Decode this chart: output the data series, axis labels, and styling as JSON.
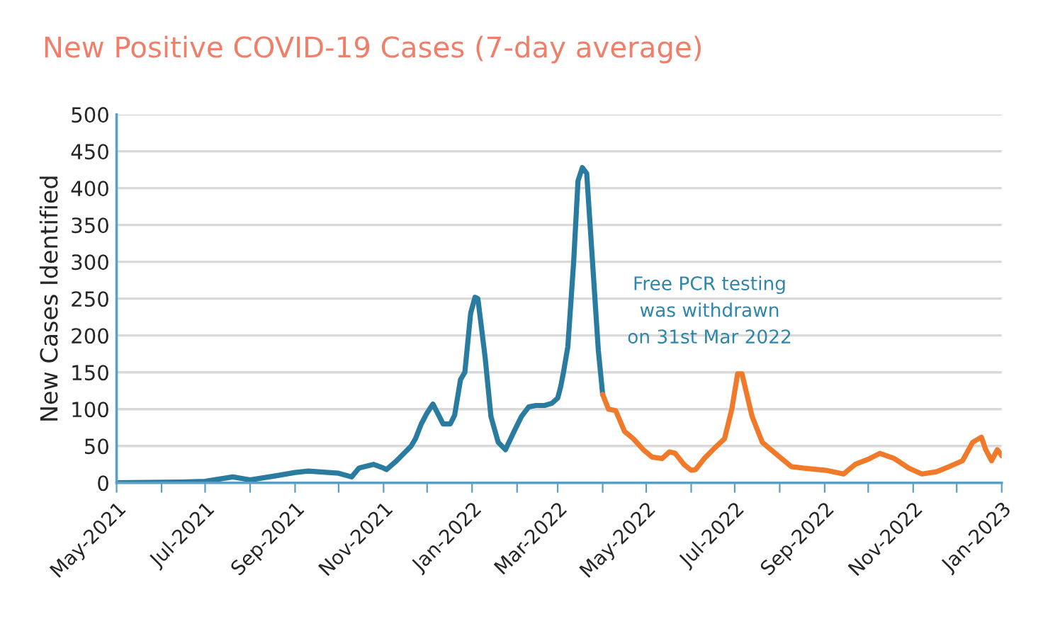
{
  "chart_data": {
    "type": "line",
    "title": "New Positive COVID-19 Cases (7-day average)",
    "ylabel": "New Cases Identified",
    "series": [
      {
        "color": "#2a7ba0",
        "x": [
          "2021-05-01",
          "2021-06-15",
          "2021-07-01",
          "2021-07-20",
          "2021-08-01",
          "2021-08-20",
          "2021-09-01",
          "2021-09-10",
          "2021-10-01",
          "2021-10-10",
          "2021-10-15",
          "2021-10-25",
          "2021-11-01",
          "2021-11-03",
          "2021-11-10",
          "2021-11-20",
          "2021-11-23",
          "2021-11-27",
          "2021-12-01",
          "2021-12-05",
          "2021-12-12",
          "2021-12-17",
          "2021-12-20",
          "2021-12-24",
          "2021-12-27",
          "2021-12-31",
          "2022-01-03",
          "2022-01-05",
          "2022-01-10",
          "2022-01-14",
          "2022-01-19",
          "2022-01-24",
          "2022-01-30",
          "2022-02-04",
          "2022-02-09",
          "2022-02-14",
          "2022-02-20",
          "2022-02-25",
          "2022-03-01",
          "2022-03-03",
          "2022-03-05",
          "2022-03-08",
          "2022-03-12",
          "2022-03-15",
          "2022-03-18",
          "2022-03-21",
          "2022-03-25",
          "2022-03-29",
          "2022-04-01"
        ],
        "values": [
          0,
          1,
          2,
          8,
          4,
          10,
          14,
          16,
          13,
          8,
          20,
          25,
          20,
          18,
          30,
          50,
          60,
          80,
          95,
          107,
          80,
          80,
          92,
          140,
          150,
          230,
          252,
          250,
          170,
          90,
          55,
          45,
          70,
          90,
          103,
          105,
          105,
          108,
          115,
          130,
          150,
          185,
          300,
          410,
          428,
          420,
          300,
          180,
          120
        ]
      },
      {
        "color": "#f07a2a",
        "x": [
          "2022-04-01",
          "2022-04-05",
          "2022-04-10",
          "2022-04-16",
          "2022-04-22",
          "2022-04-29",
          "2022-05-05",
          "2022-05-12",
          "2022-05-17",
          "2022-05-21",
          "2022-05-27",
          "2022-06-01",
          "2022-06-04",
          "2022-06-10",
          "2022-06-16",
          "2022-06-24",
          "2022-06-29",
          "2022-07-03",
          "2022-07-06",
          "2022-07-13",
          "2022-07-20",
          "2022-07-26",
          "2022-08-01",
          "2022-08-09",
          "2022-08-17",
          "2022-09-02",
          "2022-09-14",
          "2022-09-22",
          "2022-10-01",
          "2022-10-09",
          "2022-10-19",
          "2022-10-29",
          "2022-11-07",
          "2022-11-17",
          "2022-11-27",
          "2022-12-05",
          "2022-12-12",
          "2022-12-18",
          "2022-12-21",
          "2022-12-25",
          "2022-12-29",
          "2023-01-01"
        ],
        "values": [
          120,
          100,
          98,
          70,
          60,
          45,
          35,
          33,
          42,
          40,
          25,
          17,
          18,
          33,
          45,
          60,
          100,
          148,
          148,
          90,
          55,
          45,
          35,
          22,
          20,
          17,
          12,
          25,
          32,
          40,
          33,
          20,
          12,
          15,
          23,
          30,
          55,
          62,
          45,
          30,
          45,
          37
        ]
      }
    ],
    "xlim": [
      "2021-05-01",
      "2023-01-01"
    ],
    "xticks": [
      {
        "value": "2021-05-01",
        "label": "May-2021"
      },
      {
        "value": "2021-06-01",
        "label": null
      },
      {
        "value": "2021-07-01",
        "label": "Jul-2021"
      },
      {
        "value": "2021-08-01",
        "label": null
      },
      {
        "value": "2021-09-01",
        "label": "Sep-2021"
      },
      {
        "value": "2021-10-01",
        "label": null
      },
      {
        "value": "2021-11-01",
        "label": "Nov-2021"
      },
      {
        "value": "2021-12-01",
        "label": null
      },
      {
        "value": "2022-01-01",
        "label": "Jan-2022"
      },
      {
        "value": "2022-02-01",
        "label": null
      },
      {
        "value": "2022-03-01",
        "label": "Mar-2022"
      },
      {
        "value": "2022-04-01",
        "label": null
      },
      {
        "value": "2022-05-01",
        "label": "May-2022"
      },
      {
        "value": "2022-06-01",
        "label": null
      },
      {
        "value": "2022-07-01",
        "label": "Jul-2022"
      },
      {
        "value": "2022-08-01",
        "label": null
      },
      {
        "value": "2022-09-01",
        "label": "Sep-2022"
      },
      {
        "value": "2022-10-01",
        "label": null
      },
      {
        "value": "2022-11-01",
        "label": "Nov-2022"
      },
      {
        "value": "2022-12-01",
        "label": null
      },
      {
        "value": "2023-01-01",
        "label": "Jan-2023"
      }
    ],
    "ylim": [
      0,
      500
    ],
    "yticks": [
      0,
      50,
      100,
      150,
      200,
      250,
      300,
      350,
      400,
      450,
      500
    ],
    "grid": "y",
    "legend": false,
    "marker": "none",
    "line_style": "solid",
    "annotations": [
      "Free PCR testing\nwas withdrawn\non 31st Mar 2022"
    ]
  }
}
